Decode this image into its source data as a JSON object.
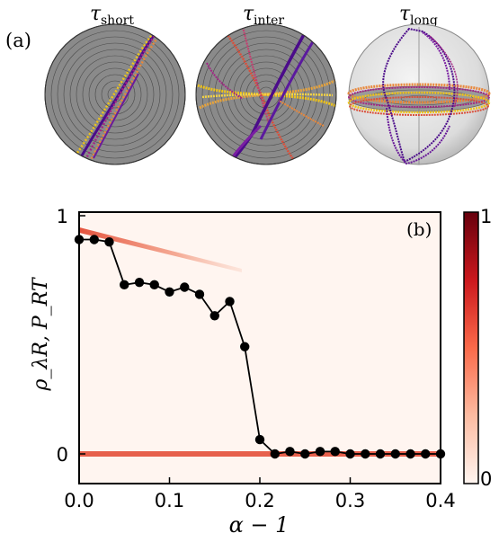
{
  "panel_a": {
    "label": "(a)",
    "spheres": [
      {
        "title_base": "τ",
        "title_sub": "short"
      },
      {
        "title_base": "τ",
        "title_sub": "inter"
      },
      {
        "title_base": "τ",
        "title_sub": "long"
      }
    ]
  },
  "chart_data": {
    "type": "scatter",
    "panel_label": "(b)",
    "xlabel": "α − 1",
    "ylabel": "ρ_λR, P_RT",
    "xlim": [
      0,
      0.4
    ],
    "ylim": [
      0,
      1
    ],
    "x_ticks": [
      "0.0",
      "0.1",
      "0.2",
      "0.3",
      "0.4"
    ],
    "y_ticks": [
      "0",
      "1"
    ],
    "colorbar": {
      "min_label": "0",
      "max_label": "1",
      "colormap": "Reds"
    },
    "series": [
      {
        "style": "black line with circle markers",
        "color": "#000000",
        "x": [
          0.0,
          0.0167,
          0.0333,
          0.05,
          0.0667,
          0.0833,
          0.1,
          0.1167,
          0.1333,
          0.15,
          0.1667,
          0.1833,
          0.2,
          0.2167,
          0.2333,
          0.25,
          0.2667,
          0.2833,
          0.3,
          0.3167,
          0.3333,
          0.35,
          0.3667,
          0.3833,
          0.4
        ],
        "y": [
          0.9,
          0.9,
          0.89,
          0.71,
          0.72,
          0.71,
          0.68,
          0.7,
          0.67,
          0.58,
          0.64,
          0.45,
          0.06,
          0.0,
          0.01,
          0.0,
          0.01,
          0.01,
          0.0,
          0.0,
          0.0,
          0.0,
          0.0,
          0.0,
          0.0
        ]
      }
    ],
    "heatmap_bands": [
      {
        "x_start": 0.0,
        "x_end": 0.18,
        "y_start": 0.94,
        "y_end": 0.77
      },
      {
        "x_start": 0.0,
        "x_end": 0.4,
        "y_start": 0.0,
        "y_end": 0.0
      }
    ]
  },
  "colors": {
    "line": "#000000",
    "heat_low": "#fff5f0",
    "heat_high": "#67000d",
    "purple": "#4b0c8a",
    "magenta": "#a22585",
    "orange": "#e8873a",
    "yellow": "#f0c419",
    "sphere_gray": "#8a8a8a"
  }
}
